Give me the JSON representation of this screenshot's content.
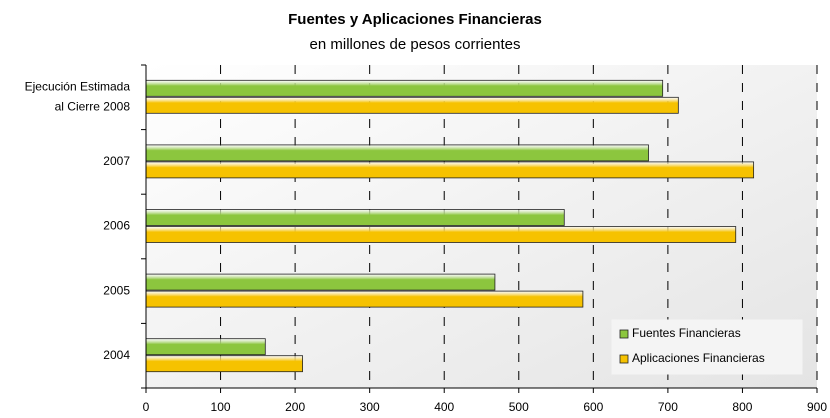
{
  "chart_data": {
    "type": "barh",
    "title": "Fuentes y Aplicaciones Financieras",
    "subtitle": "en millones de pesos corrientes",
    "categories": [
      [
        "Ejecución Estimada",
        "al Cierre 2008"
      ],
      "2007",
      "2006",
      "2005",
      "2004"
    ],
    "series": [
      {
        "name": "Fuentes Financieras",
        "color": "#8cc63e",
        "values": [
          693,
          674,
          561,
          468,
          160
        ]
      },
      {
        "name": "Aplicaciones Financieras",
        "color": "#f6c200",
        "values": [
          714,
          815,
          791,
          586,
          210
        ]
      }
    ],
    "xlim": [
      0,
      900
    ],
    "xticks": [
      0,
      100,
      200,
      300,
      400,
      500,
      600,
      700,
      800,
      900
    ],
    "grid": true,
    "legend": "lower right"
  }
}
